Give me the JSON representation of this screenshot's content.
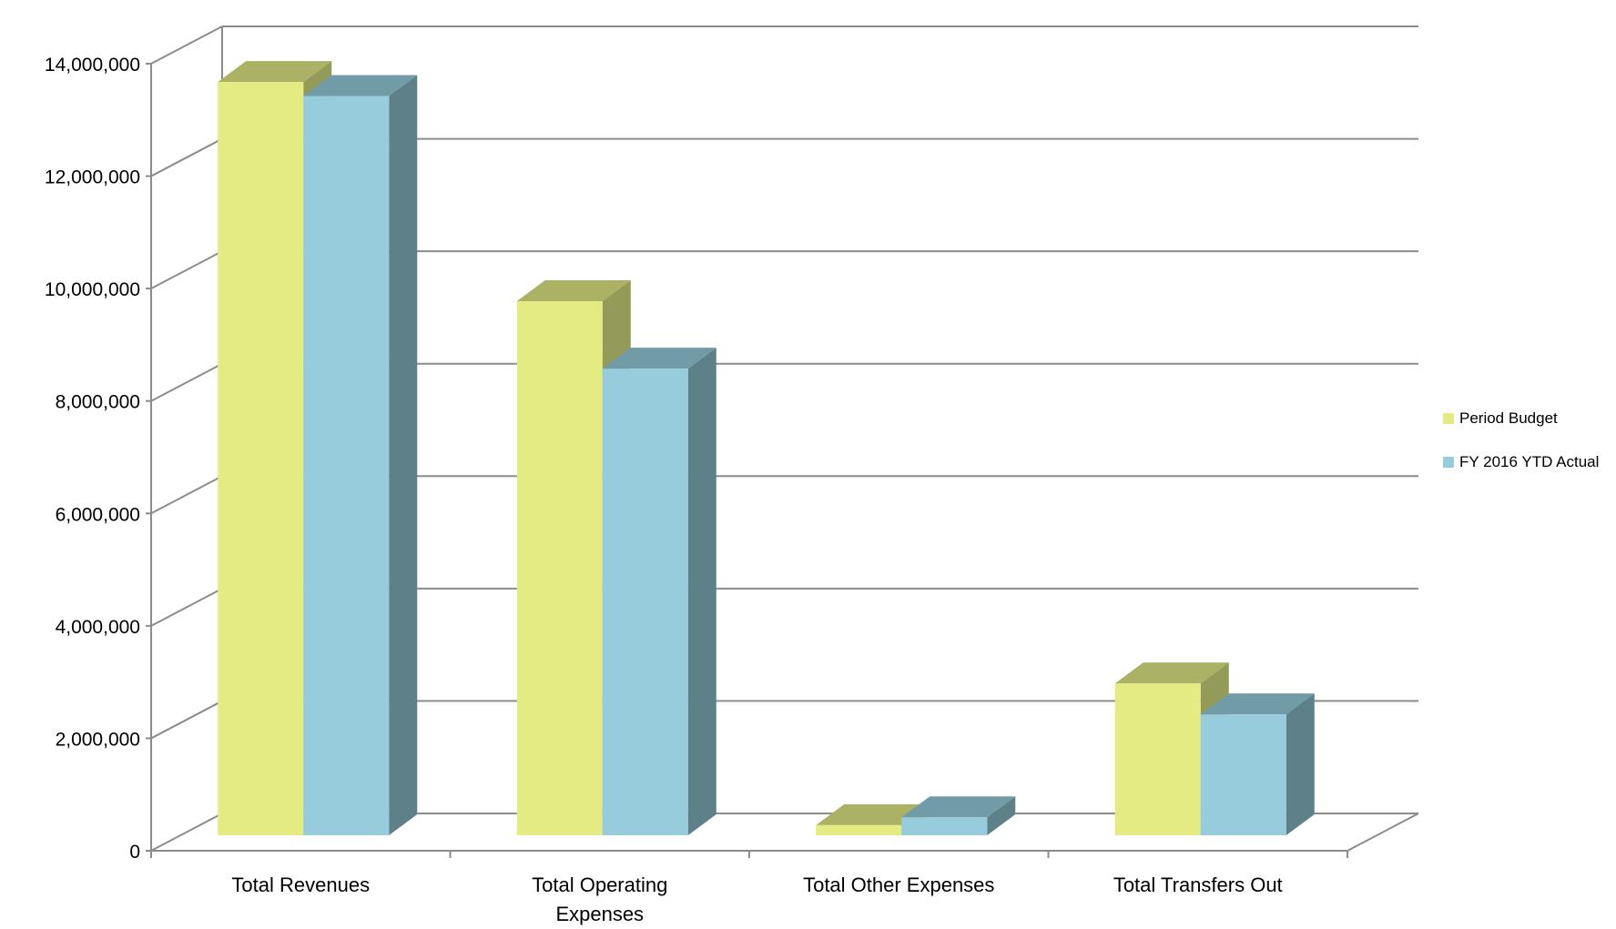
{
  "chart_data": {
    "type": "bar",
    "title": "",
    "xlabel": "",
    "ylabel": "",
    "categories": [
      "Total Revenues",
      "Total Operating Expenses",
      "Total Other Expenses",
      "Total Transfers Out"
    ],
    "category_lines": [
      [
        "Total Revenues"
      ],
      [
        "Total Operating",
        "Expenses"
      ],
      [
        "Total Other Expenses"
      ],
      [
        "Total Transfers Out"
      ]
    ],
    "series": [
      {
        "name": "Period Budget",
        "values": [
          13400000,
          9500000,
          180000,
          2700000
        ],
        "color": "#e4eb82",
        "side_color": "#949a57",
        "top_color": "#abb265"
      },
      {
        "name": "FY 2016 YTD Actual",
        "values": [
          13150000,
          8300000,
          320000,
          2150000
        ],
        "color": "#96ccdc",
        "side_color": "#5e8089",
        "top_color": "#729ba8"
      }
    ],
    "ylim": [
      0,
      14000000
    ],
    "yticks": [
      0,
      2000000,
      4000000,
      6000000,
      8000000,
      10000000,
      12000000,
      14000000
    ],
    "ytick_labels": [
      "0",
      "2,000,000",
      "4,000,000",
      "6,000,000",
      "8,000,000",
      "10,000,000",
      "12,000,000",
      "14,000,000"
    ],
    "grid": true,
    "legend_position": "right",
    "style": "3d-clustered-column"
  }
}
